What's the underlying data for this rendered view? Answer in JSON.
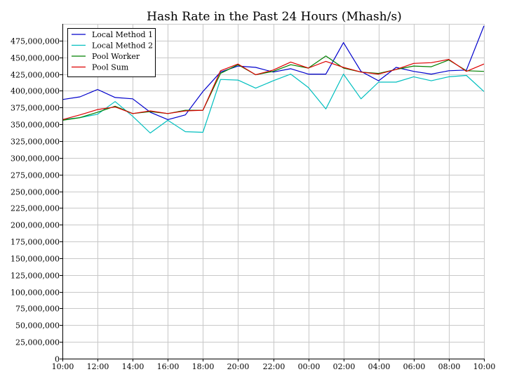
{
  "chart_data": {
    "type": "line",
    "title": "Hash Rate in the Past 24 Hours (Mhash/s)",
    "xlabel": "",
    "ylabel": "",
    "ylim": [
      0,
      500000000
    ],
    "grid": true,
    "legend_position": "top-left",
    "x": [
      "10:00",
      "11:00",
      "12:00",
      "13:00",
      "14:00",
      "15:00",
      "16:00",
      "17:00",
      "18:00",
      "19:00",
      "20:00",
      "21:00",
      "22:00",
      "23:00",
      "00:00",
      "01:00",
      "02:00",
      "03:00",
      "04:00",
      "05:00",
      "06:00",
      "07:00",
      "08:00",
      "09:00",
      "10:00"
    ],
    "x_tick_labels": [
      "10:00",
      "12:00",
      "14:00",
      "16:00",
      "18:00",
      "20:00",
      "22:00",
      "00:00",
      "02:00",
      "04:00",
      "06:00",
      "08:00",
      "10:00"
    ],
    "y_tick_labels": [
      "0",
      "25,000,000",
      "50,000,000",
      "75,000,000",
      "100,000,000",
      "125,000,000",
      "150,000,000",
      "175,000,000",
      "200,000,000",
      "225,000,000",
      "250,000,000",
      "275,000,000",
      "300,000,000",
      "325,000,000",
      "350,000,000",
      "375,000,000",
      "400,000,000",
      "425,000,000",
      "450,000,000",
      "475,000,000"
    ],
    "series": [
      {
        "name": "Local Method 1",
        "color": "#0000cc",
        "values": [
          387000000,
          391000000,
          402000000,
          390000000,
          388000000,
          368000000,
          357000000,
          364000000,
          399000000,
          428000000,
          437000000,
          435000000,
          428000000,
          433000000,
          425000000,
          425000000,
          472000000,
          429000000,
          415000000,
          435000000,
          429000000,
          425000000,
          430000000,
          431000000,
          497000000
        ]
      },
      {
        "name": "Local Method 2",
        "color": "#00bfbf",
        "values": [
          357000000,
          360000000,
          365000000,
          384000000,
          362000000,
          337000000,
          356000000,
          339000000,
          338000000,
          417000000,
          416000000,
          404000000,
          415000000,
          425000000,
          405000000,
          373000000,
          425000000,
          388000000,
          413000000,
          413000000,
          421000000,
          415000000,
          421000000,
          423000000,
          399000000
        ]
      },
      {
        "name": "Pool Worker",
        "color": "#008000",
        "values": [
          356000000,
          360000000,
          368000000,
          377000000,
          366000000,
          369000000,
          366000000,
          371000000,
          371000000,
          426000000,
          439000000,
          424000000,
          429000000,
          439000000,
          434000000,
          452000000,
          434000000,
          428000000,
          426000000,
          432000000,
          437000000,
          436000000,
          446000000,
          430000000,
          429000000
        ]
      },
      {
        "name": "Pool Sum",
        "color": "#dd0000",
        "values": [
          357000000,
          364000000,
          372000000,
          376000000,
          366000000,
          370000000,
          366000000,
          370000000,
          371000000,
          430000000,
          440000000,
          424000000,
          431000000,
          443000000,
          434000000,
          444000000,
          435000000,
          428000000,
          425000000,
          432000000,
          441000000,
          442000000,
          447000000,
          429000000,
          440000000
        ]
      }
    ]
  }
}
